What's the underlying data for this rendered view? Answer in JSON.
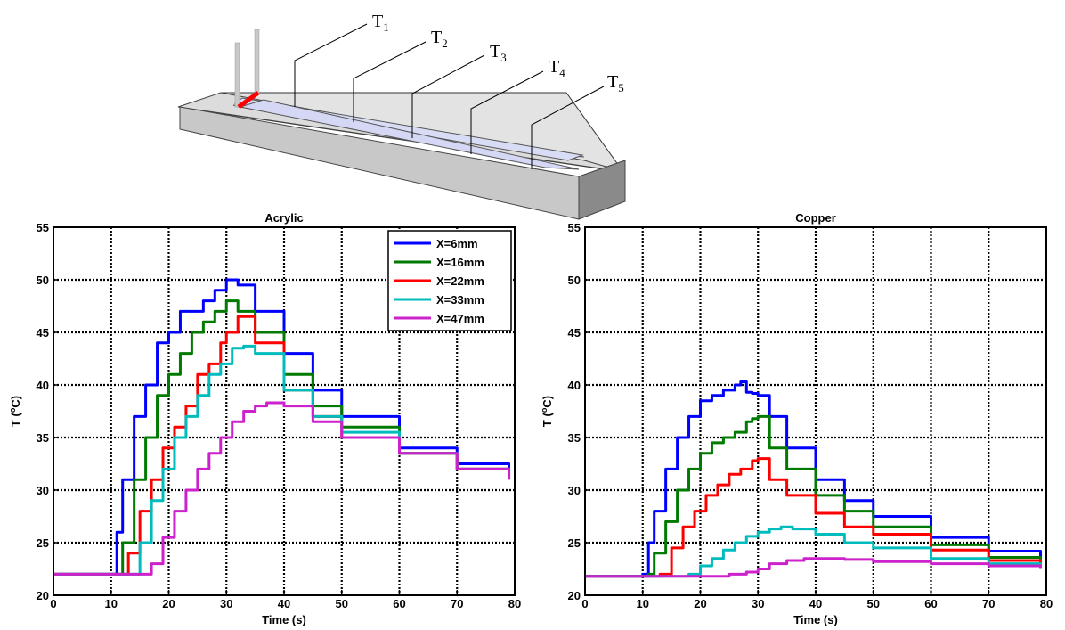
{
  "diagram": {
    "sensor_labels": [
      {
        "base": "T",
        "sub": "1"
      },
      {
        "base": "T",
        "sub": "2"
      },
      {
        "base": "T",
        "sub": "3"
      },
      {
        "base": "T",
        "sub": "4"
      },
      {
        "base": "T",
        "sub": "5"
      }
    ],
    "colors": {
      "plate": "#d9d9d9",
      "channel": "#d8dcf5",
      "heater": "#ff0000",
      "probe": "#c8c8c8"
    }
  },
  "chart_data": [
    {
      "type": "line",
      "title": "Acrylic",
      "xlabel": "Time (s)",
      "ylabel_base": "T (",
      "ylabel_sup": "o",
      "ylabel_tail": "C)",
      "xlim": [
        0,
        80
      ],
      "ylim": [
        20,
        55
      ],
      "xticks": [
        0,
        10,
        20,
        30,
        40,
        50,
        60,
        70,
        80
      ],
      "yticks": [
        20,
        25,
        30,
        35,
        40,
        45,
        50,
        55
      ],
      "grid": true,
      "legend_position": "top-right",
      "series": [
        {
          "name": "X=6mm",
          "color": "#0000ff",
          "x": [
            0,
            10,
            11,
            12,
            14,
            16,
            18,
            20,
            22,
            24,
            26,
            28,
            30,
            32,
            35,
            40,
            45,
            50,
            60,
            70,
            79
          ],
          "y": [
            22,
            22,
            26,
            31,
            37,
            40,
            44,
            45,
            47,
            47,
            48,
            49,
            50,
            49.5,
            47,
            43,
            39.5,
            37,
            34,
            32.5,
            31.5
          ]
        },
        {
          "name": "X=16mm",
          "color": "#007a00",
          "x": [
            0,
            11,
            12,
            14,
            16,
            18,
            20,
            22,
            24,
            26,
            28,
            30,
            32,
            35,
            40,
            45,
            50,
            60,
            70,
            79
          ],
          "y": [
            22,
            22,
            25,
            31,
            35,
            39,
            41,
            43,
            45,
            46,
            47,
            48,
            47,
            45,
            41,
            38,
            36,
            33.5,
            32,
            31.2
          ]
        },
        {
          "name": "X=22mm",
          "color": "#ff0000",
          "x": [
            0,
            12,
            13,
            15,
            17,
            19,
            21,
            23,
            25,
            27,
            29,
            30,
            32,
            35,
            40,
            45,
            50,
            60,
            70,
            79
          ],
          "y": [
            22,
            22,
            24,
            28,
            31,
            34,
            36,
            38,
            41,
            42,
            44,
            45,
            46.5,
            44,
            39.5,
            37,
            35,
            33.5,
            32,
            31
          ]
        },
        {
          "name": "X=33mm",
          "color": "#00bcbc",
          "x": [
            0,
            13,
            15,
            17,
            19,
            21,
            23,
            25,
            27,
            29,
            31,
            33,
            35,
            40,
            45,
            50,
            60,
            70,
            79
          ],
          "y": [
            22,
            22,
            25,
            29,
            32,
            35,
            37,
            39,
            41,
            42,
            43.5,
            43.7,
            43,
            39.5,
            37,
            35.5,
            33.5,
            32,
            31
          ]
        },
        {
          "name": "X=47mm",
          "color": "#cc22cc",
          "x": [
            0,
            16,
            17,
            19,
            21,
            23,
            25,
            27,
            29,
            31,
            33,
            35,
            37,
            40,
            45,
            50,
            60,
            70,
            79
          ],
          "y": [
            22,
            22,
            23,
            25.5,
            28,
            30,
            32,
            33.5,
            35,
            36.5,
            37.5,
            38,
            38.3,
            38,
            36.5,
            35,
            33.5,
            32,
            31
          ]
        }
      ]
    },
    {
      "type": "line",
      "title": "Copper",
      "xlabel": "Time (s)",
      "ylabel_base": "T (",
      "ylabel_sup": "o",
      "ylabel_tail": "C)",
      "xlim": [
        0,
        80
      ],
      "ylim": [
        20,
        55
      ],
      "xticks": [
        0,
        10,
        20,
        30,
        40,
        50,
        60,
        70,
        80
      ],
      "yticks": [
        20,
        25,
        30,
        35,
        40,
        45,
        50,
        55
      ],
      "grid": true,
      "series": [
        {
          "name": "X=6mm",
          "color": "#0000ff",
          "x": [
            0,
            10,
            11,
            12,
            14,
            16,
            18,
            20,
            22,
            24,
            26,
            27,
            28,
            29,
            30,
            32,
            35,
            40,
            45,
            50,
            60,
            70,
            79
          ],
          "y": [
            21.8,
            22,
            25,
            28,
            32,
            35,
            37,
            38.5,
            39,
            39.5,
            40,
            40.3,
            39.3,
            39.2,
            39,
            37,
            34,
            31,
            29,
            27.5,
            25.5,
            24.2,
            23.5
          ]
        },
        {
          "name": "X=16mm",
          "color": "#007a00",
          "x": [
            0,
            11,
            12,
            14,
            16,
            18,
            20,
            22,
            24,
            26,
            28,
            29,
            30,
            32,
            35,
            40,
            45,
            50,
            60,
            70,
            79
          ],
          "y": [
            21.8,
            22,
            24,
            27,
            30,
            32,
            33.5,
            34.5,
            35,
            35.5,
            36.5,
            36.8,
            37,
            34,
            32,
            29.5,
            28,
            26.5,
            24.8,
            23.6,
            23
          ]
        },
        {
          "name": "X=22mm",
          "color": "#ff0000",
          "x": [
            0,
            13,
            15,
            17,
            19,
            21,
            23,
            25,
            27,
            29,
            30,
            32,
            35,
            40,
            45,
            50,
            60,
            70,
            79
          ],
          "y": [
            21.8,
            22,
            24.5,
            26.5,
            28,
            29.5,
            30.5,
            31.5,
            32,
            32.8,
            33,
            31,
            29.5,
            27.8,
            26.5,
            25.8,
            24.3,
            23.3,
            22.8
          ]
        },
        {
          "name": "X=33mm",
          "color": "#00bcbc",
          "x": [
            0,
            18,
            20,
            22,
            24,
            26,
            28,
            30,
            32,
            34,
            36,
            40,
            45,
            50,
            60,
            70,
            79
          ],
          "y": [
            21.8,
            22,
            22.8,
            23.5,
            24.3,
            25,
            25.6,
            26,
            26.3,
            26.5,
            26.3,
            25.8,
            25,
            24.5,
            23.5,
            23,
            22.6
          ]
        },
        {
          "name": "X=47mm",
          "color": "#cc22cc",
          "x": [
            0,
            25,
            28,
            30,
            32,
            35,
            38,
            40,
            43,
            45,
            50,
            60,
            70,
            79
          ],
          "y": [
            21.8,
            22,
            22.2,
            22.5,
            23,
            23.3,
            23.5,
            23.5,
            23.5,
            23.4,
            23.2,
            23,
            22.8,
            22.6
          ]
        }
      ]
    }
  ]
}
